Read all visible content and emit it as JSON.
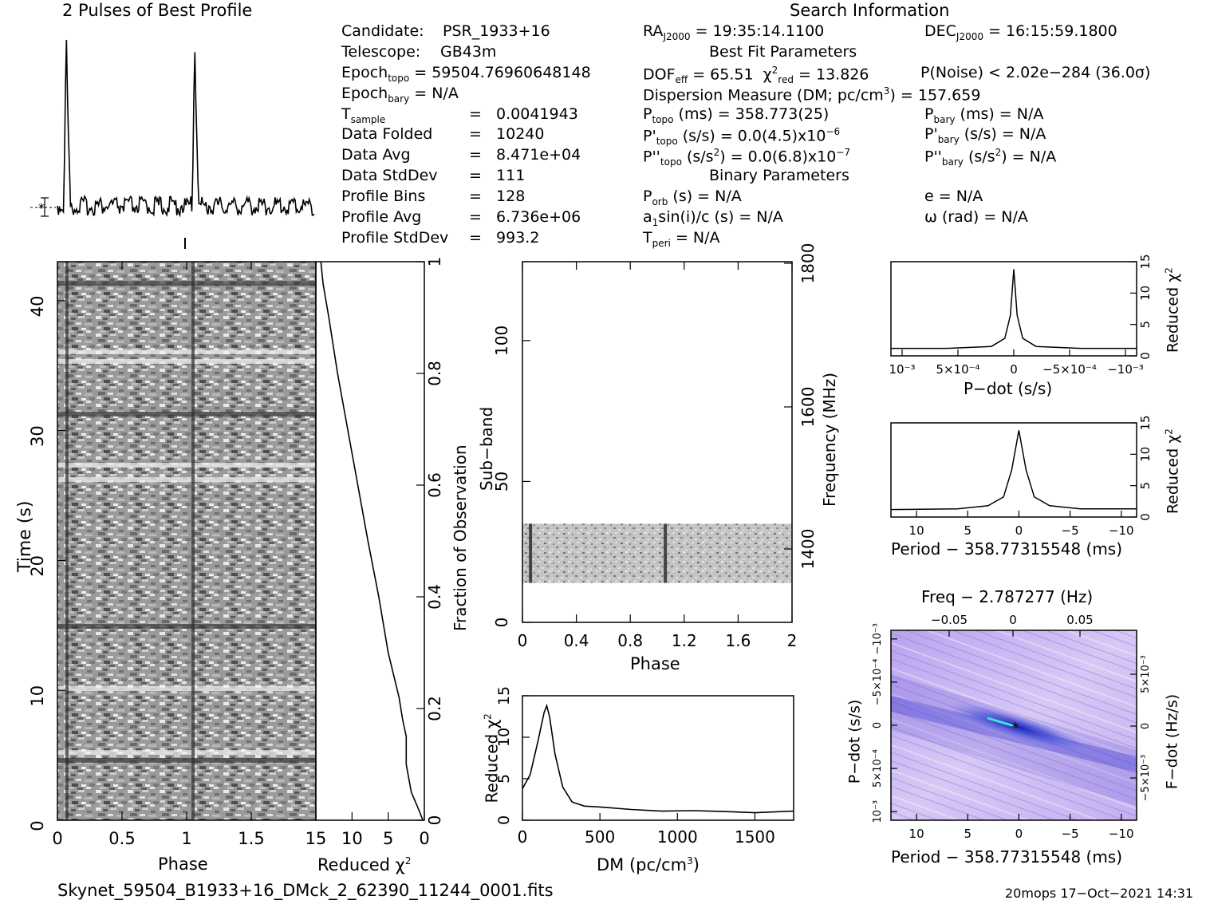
{
  "profile": {
    "title": "2 Pulses of Best Profile"
  },
  "info": {
    "search_title": "Search Information",
    "candidate_label": "Candidate:",
    "candidate": "PSR_1933+16",
    "telescope_label": "Telescope:",
    "telescope": "GB43m",
    "epoch_topo_label": "Epoch",
    "epoch_topo_sub": "topo",
    "epoch_topo": "= 59504.76960648148",
    "epoch_bary_label": "Epoch",
    "epoch_bary_sub": "bary",
    "epoch_bary": "= N/A",
    "tsample_label": "T",
    "tsample_sub": "sample",
    "tsample": "=   0.0041943",
    "data_folded_label": "Data Folded",
    "data_folded": "=   10240",
    "data_avg_label": "Data Avg",
    "data_avg": "=   8.471e+04",
    "data_stddev_label": "Data StdDev",
    "data_stddev": "=   111",
    "profile_bins_label": "Profile Bins",
    "profile_bins": "=   128",
    "profile_avg_label": "Profile Avg",
    "profile_avg": "=   6.736e+06",
    "profile_stddev_label": "Profile StdDev",
    "profile_stddev": "=   993.2",
    "ra_label": "RA",
    "ra_sub": "J2000",
    "ra": "= 19:35:14.1100",
    "dec_label": "DEC",
    "dec_sub": "J2000",
    "dec": "= 16:15:59.1800",
    "best_fit_title": "Best Fit Parameters",
    "dof_label": "DOF",
    "dof_sub": "eff",
    "dof": "= 65.51",
    "chi_label": "χ",
    "chi_sup": "2",
    "chi_sub": "red",
    "chi": "= 13.826",
    "pnoise": "P(Noise) < 2.02e−284   (36.0σ)",
    "dm_line": "Dispersion Measure (DM; pc/cm",
    "dm_sup": "3",
    "dm_value": ") = 157.659",
    "ptopo_label": "P",
    "ptopo_sub": "topo",
    "ptopo": "(ms) =  358.773(25)",
    "pbary_label": "P",
    "pbary_sub": "bary",
    "pbary": "(ms) = N/A",
    "pdtopo_label": "P'",
    "pdtopo_sub": "topo",
    "pdtopo": "(s/s) = 0.0(4.5)x10",
    "pdtopo_sup": "−6",
    "pdbary_label": "P'",
    "pdbary_sub": "bary",
    "pdbary": "(s/s) = N/A",
    "pddtopo_label": "P''",
    "pddtopo_sub": "topo",
    "pddtopo_a": "(s/s",
    "pddtopo_sup": "2",
    "pddtopo": ") = 0.0(6.8)x10",
    "pddtopo_sup2": "−7",
    "pddbary_label": "P''",
    "pddbary_sub": "bary",
    "pddbary_a": "(s/s",
    "pddbary_sup": "2",
    "pddbary": ") = N/A",
    "binary_title": "Binary Parameters",
    "porb_label": "P",
    "porb_sub": "orb",
    "porb": "(s) = N/A",
    "asini_a": "a",
    "asini_sub": "1",
    "asini": "sin(i)/c (s) = N/A",
    "tperi_label": "T",
    "tperi_sub": "peri",
    "tperi": "= N/A",
    "ecc": "e = N/A",
    "omega": "ω (rad) = N/A"
  },
  "labels": {
    "time": "Time (s)",
    "phase": "Phase",
    "reduced_chi": "Reduced χ",
    "chi_sup": "2",
    "fraction": "Fraction of Observation",
    "subband": "Sub−band",
    "frequency": "Frequency (MHz)",
    "dm_axis": "DM (pc/cm",
    "dm_axis_sup": "3",
    "dm_axis_end": ")",
    "pdot": "P−dot (s/s)",
    "period": "Period − 358.77315548 (ms)",
    "freq_top": "Freq − 2.787277 (Hz)",
    "fdot": "F−dot (Hz/s)",
    "pdot_left": "P−dot (s/s)"
  },
  "footer": {
    "filename": "Skynet_59504_B1933+16_DMck_2_62390_11244_0001.fits",
    "stamp": "20mops 17−Oct−2021 14:31"
  },
  "colors": {
    "ink": "#000000",
    "grid": "#ffffff",
    "ppdot_base": "#c9b8f0",
    "ppdot_dark": "#2030c8",
    "ppdot_cyan": "#40e0e0"
  },
  "chart_data": [
    {
      "type": "line",
      "name": "pulse-profile",
      "x": [
        0,
        0.05,
        0.06,
        0.07,
        0.08,
        0.1,
        0.2,
        0.5,
        1.0,
        1.05,
        1.06,
        1.07,
        1.08,
        1.1,
        1.5,
        2.0
      ],
      "y": [
        0,
        0,
        0.6,
        1.0,
        0.6,
        0,
        0,
        0,
        0,
        0,
        0.6,
        1.0,
        0.6,
        0,
        0,
        0
      ]
    },
    {
      "type": "heatmap",
      "name": "time-phase",
      "xlabel": "Phase",
      "ylabel": "Time (s)",
      "x_ticks": [
        "0",
        "0.5",
        "1",
        "1.5"
      ],
      "y_ticks": [
        "0",
        "10",
        "20",
        "30",
        "40"
      ],
      "xlim": [
        0,
        2
      ],
      "ylim": [
        0,
        43
      ],
      "pulse_phase": [
        0.06,
        1.06
      ]
    },
    {
      "type": "line",
      "name": "cumulative-chi",
      "xlabel": "Reduced χ2",
      "ylabel": "Fraction of Observation",
      "x_ticks": [
        "15",
        "10",
        "5",
        "0"
      ],
      "y_ticks": [
        "0",
        "0.2",
        "0.4",
        "0.6",
        "0.8",
        "1"
      ],
      "xlim": [
        15,
        0
      ],
      "ylim": [
        0,
        1
      ],
      "x": [
        0.2,
        0.8,
        1.8,
        2.5,
        2.5,
        3.0,
        3.5,
        5.0,
        6.3,
        7.8,
        9.2,
        10.6,
        12.0,
        13.2,
        14.0,
        14.3
      ],
      "y": [
        0,
        0.02,
        0.05,
        0.1,
        0.15,
        0.18,
        0.22,
        0.3,
        0.4,
        0.5,
        0.6,
        0.7,
        0.8,
        0.9,
        0.96,
        1.0
      ]
    },
    {
      "type": "heatmap",
      "name": "subband-phase",
      "xlabel": "Phase",
      "ylabel": "Sub−band",
      "y2label": "Frequency (MHz)",
      "x_ticks": [
        "0",
        "0.4",
        "0.8",
        "1.2",
        "1.6",
        "2"
      ],
      "y_ticks": [
        "0",
        "50",
        "100"
      ],
      "y2_ticks": [
        "1400",
        "1600",
        "1800"
      ],
      "xlim": [
        0,
        2
      ],
      "ylim": [
        0,
        128
      ],
      "band_rows": [
        14,
        35
      ],
      "pulse_phase": [
        0.06,
        1.06
      ]
    },
    {
      "type": "line",
      "name": "dm-chi",
      "xlabel": "DM (pc/cm3)",
      "ylabel": "Reduced χ2",
      "x_ticks": [
        "0",
        "500",
        "1000",
        "1500"
      ],
      "y_ticks": [
        "0",
        "5",
        "10",
        "15"
      ],
      "xlim": [
        0,
        1750
      ],
      "ylim": [
        0,
        15
      ],
      "x": [
        0,
        50,
        100,
        140,
        157,
        175,
        210,
        260,
        320,
        400,
        500,
        700,
        900,
        1100,
        1300,
        1500,
        1750
      ],
      "y": [
        3.8,
        5.5,
        9.5,
        13.0,
        13.8,
        12.5,
        8.0,
        4.0,
        2.2,
        1.7,
        1.6,
        1.3,
        1.1,
        1.15,
        1.05,
        0.9,
        1.1
      ]
    },
    {
      "type": "line",
      "name": "pdot-chi",
      "xlabel": "P−dot (s/s)",
      "ylabel": "Reduced χ2",
      "x_ticks": [
        "10⁻³",
        "5×10⁻⁴",
        "0",
        "−5×10⁻⁴",
        "−10⁻³"
      ],
      "y_ticks": [
        "0",
        "5",
        "10",
        "15"
      ],
      "xlim": [
        0.0011,
        -0.0011
      ],
      "ylim": [
        0,
        15
      ],
      "x": [
        0.0011,
        0.0006,
        0.0002,
        8e-05,
        3e-05,
        0,
        -3e-05,
        -8e-05,
        -0.0002,
        -0.0006,
        -0.0011
      ],
      "y": [
        1.2,
        1.2,
        1.5,
        2.8,
        6.5,
        13.8,
        6.5,
        2.8,
        1.5,
        1.2,
        1.2
      ]
    },
    {
      "type": "line",
      "name": "period-chi",
      "xlabel": "Period − 358.77315548 (ms)",
      "ylabel": "Reduced χ2",
      "x_ticks": [
        "10",
        "5",
        "0",
        "−5",
        "−10"
      ],
      "y_ticks": [
        "0",
        "5",
        "10",
        "15"
      ],
      "xlim": [
        12.5,
        -11.5
      ],
      "ylim": [
        0,
        15
      ],
      "x": [
        12.5,
        6,
        3,
        1.5,
        0.7,
        0,
        -0.7,
        -1.5,
        -3,
        -6,
        -11.5
      ],
      "y": [
        1.2,
        1.3,
        1.8,
        3.2,
        7.5,
        13.8,
        7.5,
        3.2,
        1.8,
        1.3,
        1.3
      ]
    },
    {
      "type": "heatmap",
      "name": "p-pdot",
      "xlabel": "Period − 358.77315548 (ms)",
      "ylabel": "P−dot (s/s)",
      "x2label": "Freq − 2.787277 (Hz)",
      "y2label": "F−dot (Hz/s)",
      "x_ticks": [
        "10",
        "5",
        "0",
        "−5",
        "−10"
      ],
      "x2_ticks": [
        "−0.05",
        "0",
        "0.05"
      ],
      "y_ticks": [
        "10⁻³",
        "5×10⁻⁴",
        "0",
        "−5×10⁻⁴",
        "−10⁻³"
      ],
      "y2_ticks": [
        "−5×10⁻³",
        "0",
        "5×10⁻³"
      ],
      "xlim": [
        12.5,
        -11.5
      ],
      "ylim": [
        0.0011,
        -0.0011
      ],
      "best": [
        0,
        0
      ]
    }
  ]
}
